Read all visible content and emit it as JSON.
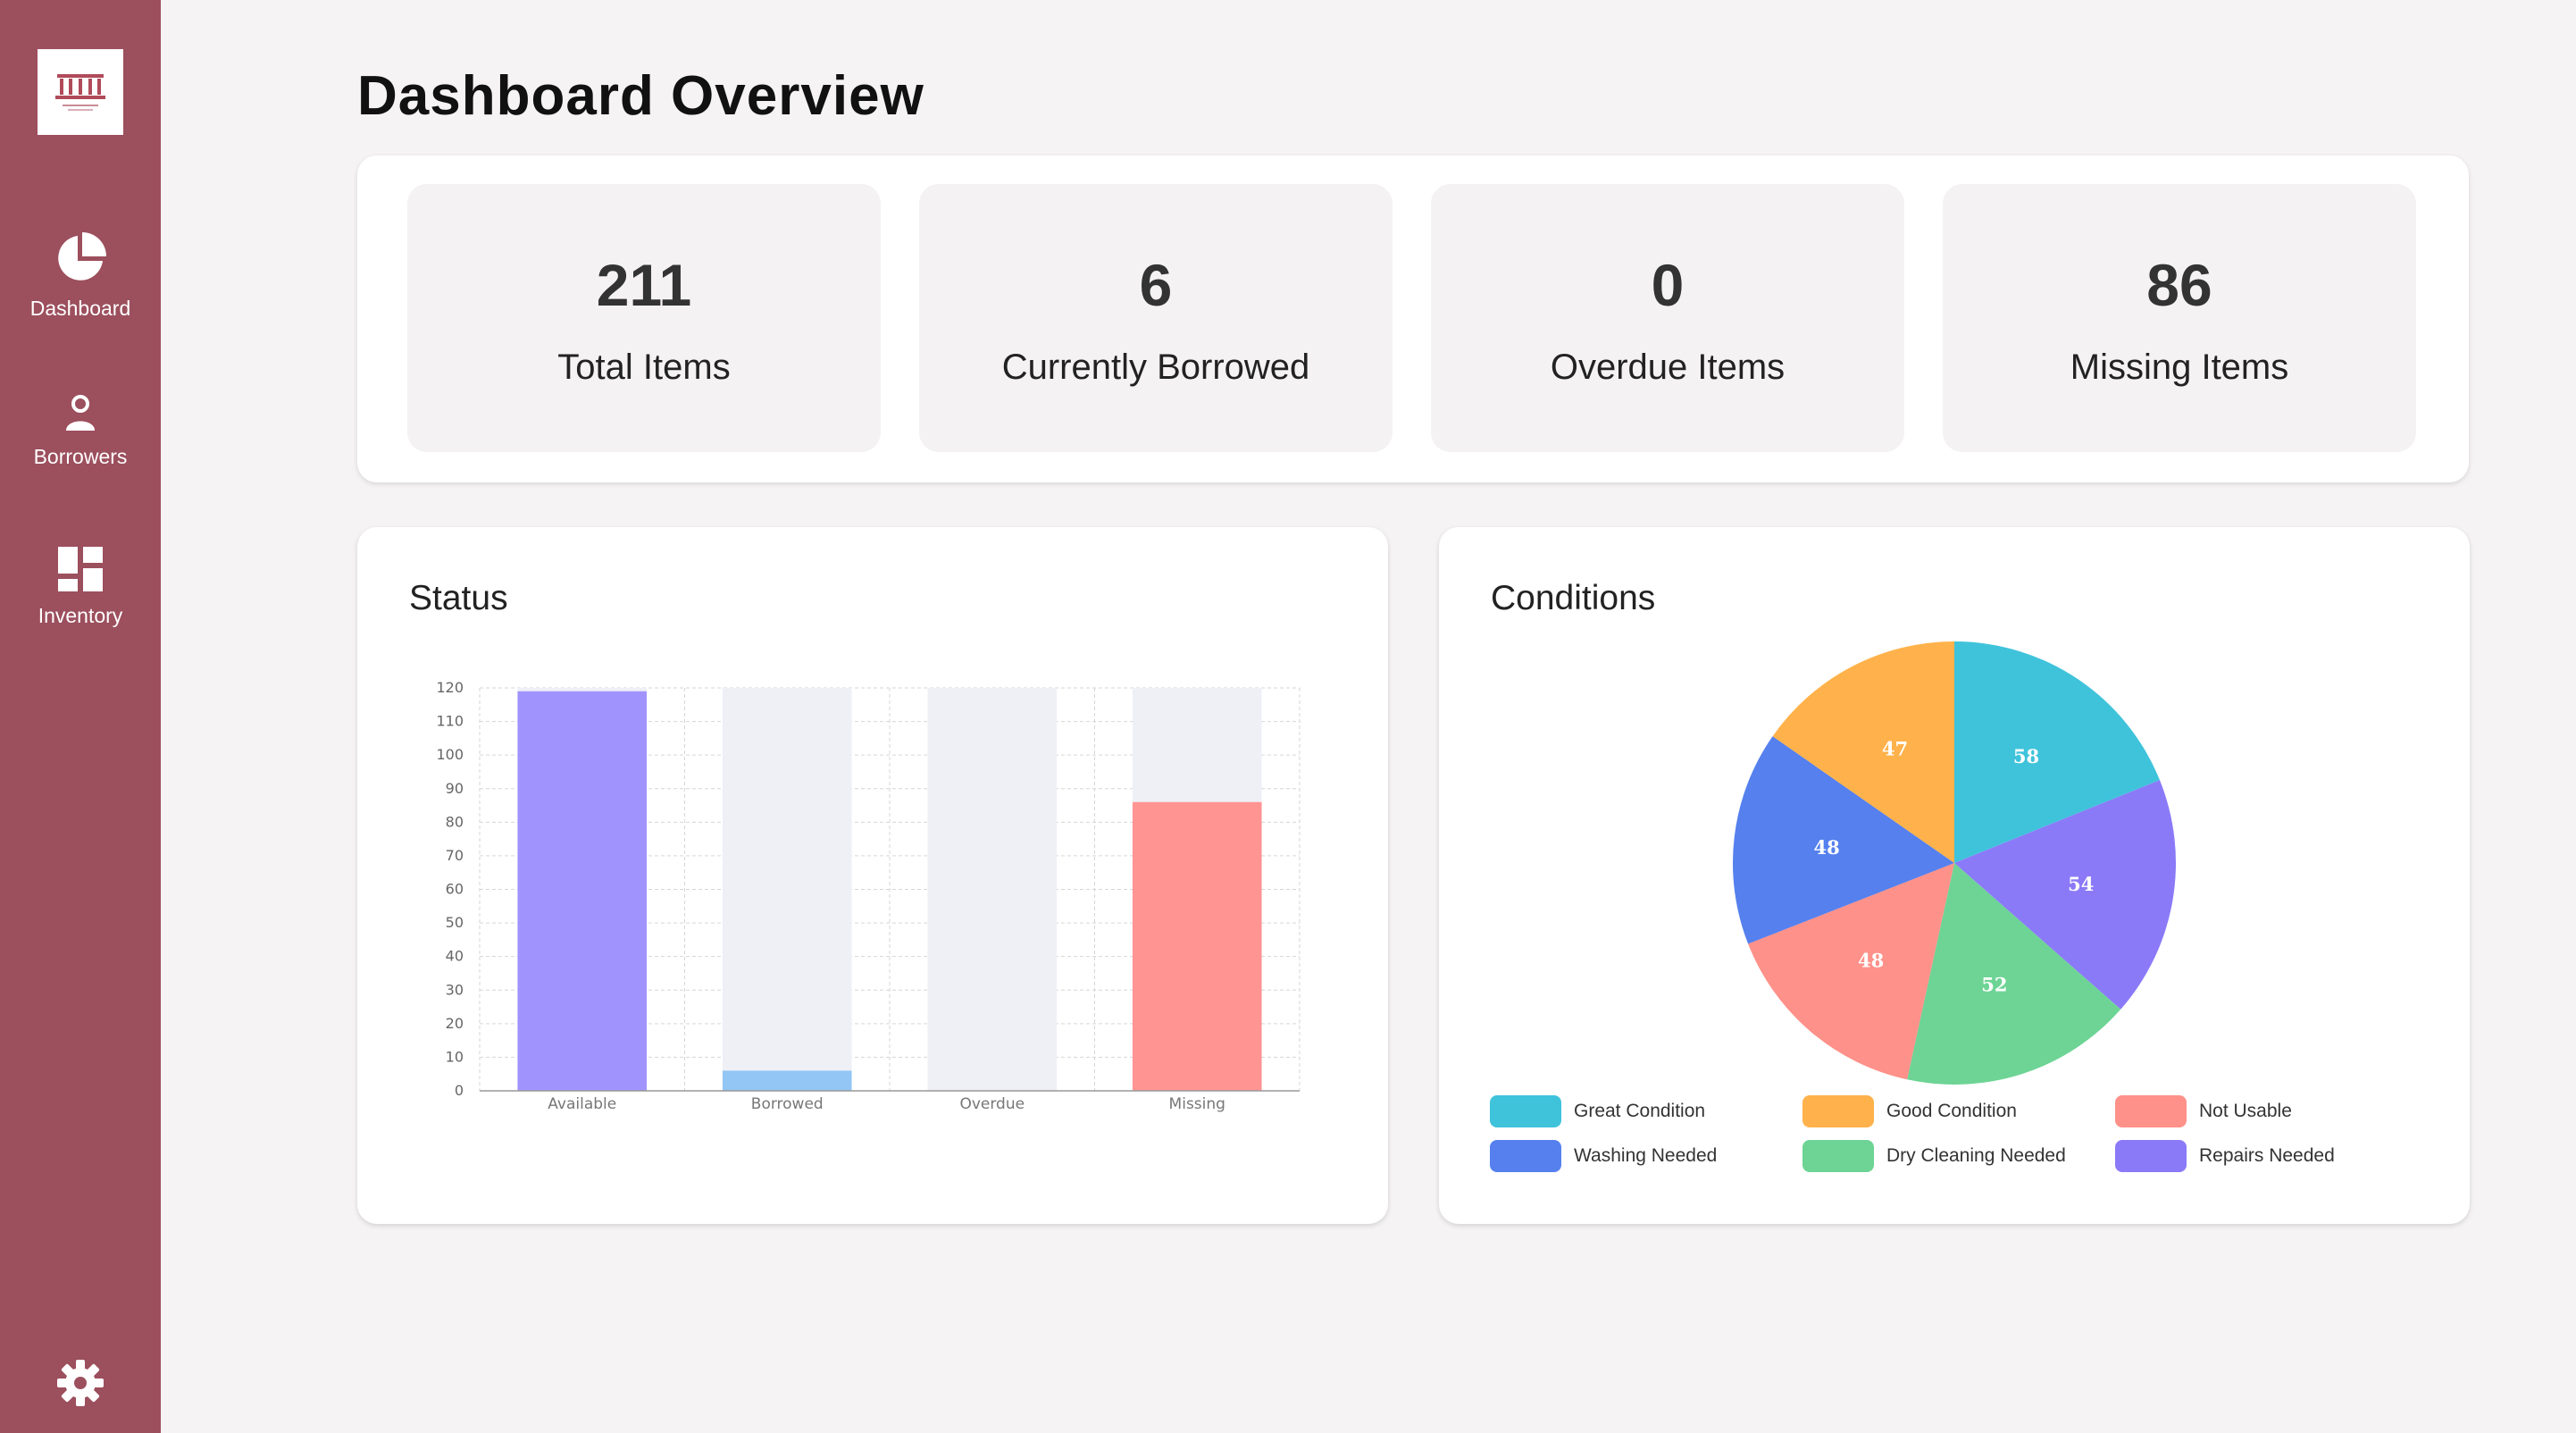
{
  "sidebar": {
    "items": [
      {
        "label": "Dashboard",
        "icon": "pie-chart-icon"
      },
      {
        "label": "Borrowers",
        "icon": "person-icon"
      },
      {
        "label": "Inventory",
        "icon": "dashboard-grid-icon"
      }
    ],
    "settings_icon": "gear-icon",
    "background": "#9c4f5d"
  },
  "page": {
    "title": "Dashboard Overview"
  },
  "stats": [
    {
      "value": "211",
      "label": "Total Items"
    },
    {
      "value": "6",
      "label": "Currently Borrowed"
    },
    {
      "value": "0",
      "label": "Overdue Items"
    },
    {
      "value": "86",
      "label": "Missing Items"
    }
  ],
  "status_card": {
    "title": "Status"
  },
  "conditions_card": {
    "title": "Conditions"
  },
  "chart_data": [
    {
      "type": "bar",
      "title": "Status",
      "categories": [
        "Available",
        "Borrowed",
        "Overdue",
        "Missing"
      ],
      "values": [
        119,
        6,
        0,
        86
      ],
      "colors": [
        "#a193fd",
        "#93c6f5",
        "#ec8a96",
        "#ff9492"
      ],
      "background_bar_color": "#eef0f6",
      "ylim": [
        0,
        120
      ],
      "yticks": [
        0,
        10,
        20,
        30,
        40,
        50,
        60,
        70,
        80,
        90,
        100,
        110,
        120
      ],
      "grid": true
    },
    {
      "type": "pie",
      "title": "Conditions",
      "labels": [
        "Great Condition",
        "Repairs Needed",
        "Dry Cleaning Needed",
        "Not Usable",
        "Washing Needed",
        "Good Condition"
      ],
      "values": [
        58,
        54,
        52,
        48,
        48,
        47
      ],
      "display_values": [
        "58",
        "54",
        "52",
        "48",
        "48",
        "47"
      ],
      "colors": [
        "#3fc3db",
        "#8a7af8",
        "#6dd495",
        "#fe9189",
        "#5580ee",
        "#ffb24b"
      ],
      "legend_order": [
        "Great Condition",
        "Good Condition",
        "Not Usable",
        "Washing Needed",
        "Dry Cleaning Needed",
        "Repairs Needed"
      ],
      "legend_placement": "bottom"
    }
  ]
}
